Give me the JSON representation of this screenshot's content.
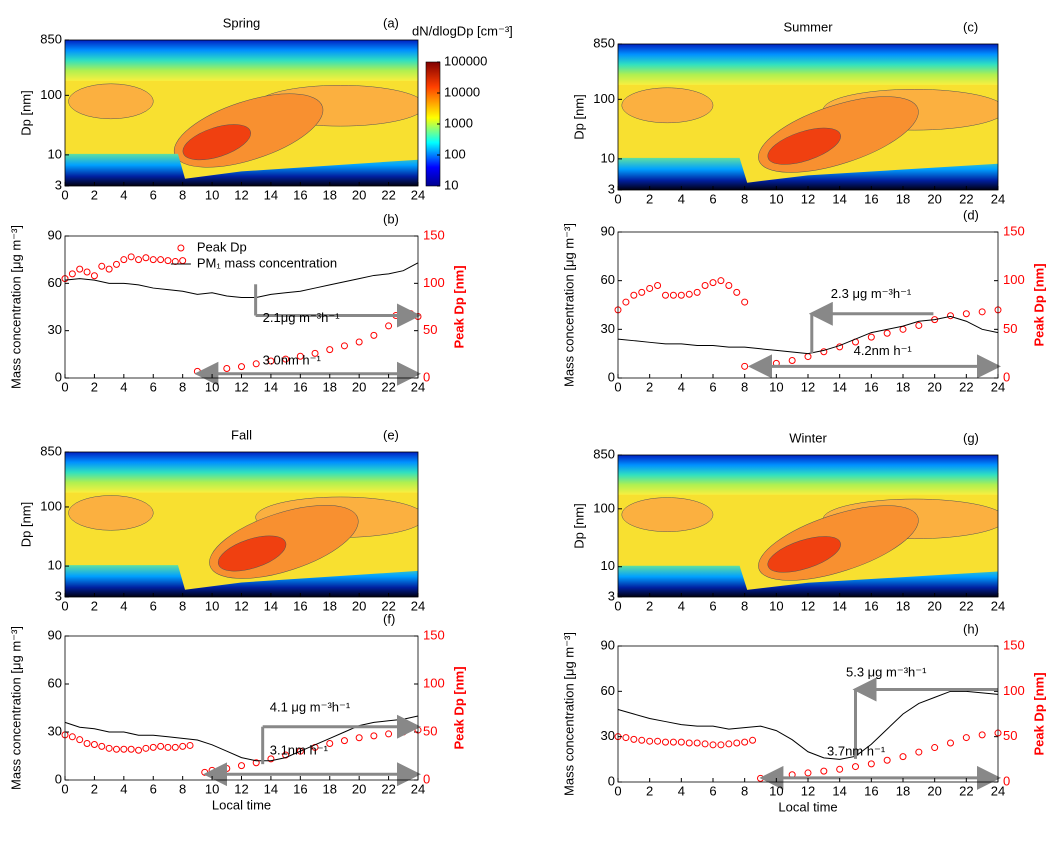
{
  "chart_data": [
    {
      "type": "contour",
      "title": "Spring",
      "label": "(a)",
      "ylabel": "Dp [nm]",
      "xlim": [
        0,
        24
      ],
      "xticks": [
        0,
        2,
        4,
        6,
        8,
        10,
        12,
        14,
        16,
        18,
        20,
        22,
        24
      ],
      "ylim": [
        3,
        850
      ],
      "yticks": [
        3,
        10,
        100,
        850
      ],
      "log_y": true,
      "clabel": "dN/dlogDp [cm⁻³]",
      "clim": [
        10,
        100000
      ],
      "cticks": [
        10,
        100,
        1000,
        10000,
        100000
      ]
    },
    {
      "type": "line",
      "label": "(b)",
      "ylabel": "Mass concentration [μg m⁻³]",
      "y2label": "Peak Dp [nm]",
      "xlim": [
        0,
        24
      ],
      "xticks": [
        0,
        2,
        4,
        6,
        8,
        10,
        12,
        14,
        16,
        18,
        20,
        22,
        24
      ],
      "ylim": [
        0,
        90
      ],
      "yticks": [
        0,
        30,
        60,
        90
      ],
      "y2lim": [
        0,
        150
      ],
      "y2ticks": [
        0,
        50,
        100,
        150
      ],
      "legend": "top-left",
      "series": [
        {
          "name": "Peak Dp",
          "color": "#ff0000",
          "marker": "circle",
          "axis": "y2",
          "x": [
            0,
            0.5,
            1,
            1.5,
            2,
            2.5,
            3,
            3.5,
            4,
            4.5,
            5,
            5.5,
            6,
            6.5,
            7,
            7.5,
            8,
            9,
            10,
            11,
            12,
            13,
            14,
            15,
            16,
            17,
            18,
            19,
            20,
            21,
            22,
            22.5,
            23,
            23.5,
            24
          ],
          "values": [
            105,
            110,
            115,
            112,
            108,
            118,
            115,
            120,
            125,
            128,
            125,
            127,
            125,
            125,
            124,
            123,
            124,
            7,
            8,
            10,
            12,
            15,
            18,
            20,
            23,
            26,
            30,
            34,
            38,
            45,
            55,
            66,
            70,
            68,
            65
          ]
        },
        {
          "name": "PM₁ mass concentration",
          "color": "#000000",
          "x": [
            0,
            1,
            2,
            3,
            4,
            5,
            6,
            7,
            8,
            9,
            10,
            11,
            12,
            13,
            14,
            15,
            16,
            17,
            18,
            19,
            20,
            21,
            22,
            23,
            24
          ],
          "values": [
            62,
            63,
            62,
            60,
            60,
            59,
            57,
            56,
            55,
            53,
            54,
            52,
            51,
            51,
            53,
            54,
            55,
            57,
            59,
            61,
            63,
            65,
            66,
            68,
            73
          ]
        }
      ],
      "annotations": [
        "2.1μg m⁻³h⁻¹",
        "3.0nm h⁻¹"
      ]
    },
    {
      "type": "contour",
      "title": "Summer",
      "label": "(c)",
      "ylabel": "Dp [nm]",
      "xlim": [
        0,
        24
      ],
      "xticks": [
        0,
        2,
        4,
        6,
        8,
        10,
        12,
        14,
        16,
        18,
        20,
        22,
        24
      ],
      "ylim": [
        3,
        850
      ],
      "yticks": [
        3,
        10,
        100,
        850
      ],
      "log_y": true
    },
    {
      "type": "line",
      "label": "(d)",
      "ylabel": "Mass concentration [μg m⁻³]",
      "y2label": "Peak Dp [nm]",
      "xlim": [
        0,
        24
      ],
      "xticks": [
        0,
        2,
        4,
        6,
        8,
        10,
        12,
        14,
        16,
        18,
        20,
        22,
        24
      ],
      "ylim": [
        0,
        90
      ],
      "yticks": [
        0,
        30,
        60,
        90
      ],
      "y2lim": [
        0,
        150
      ],
      "y2ticks": [
        0,
        50,
        100,
        150
      ],
      "series": [
        {
          "color": "#ff0000",
          "marker": "circle",
          "axis": "y2",
          "x": [
            0,
            0.5,
            1,
            1.5,
            2,
            2.5,
            3,
            3.5,
            4,
            4.5,
            5,
            5.5,
            6,
            6.5,
            7,
            7.5,
            8,
            8,
            9,
            10,
            11,
            12,
            13,
            14,
            15,
            16,
            17,
            18,
            19,
            20,
            21,
            22,
            23,
            24
          ],
          "values": [
            70,
            78,
            85,
            88,
            92,
            95,
            85,
            85,
            85,
            86,
            88,
            95,
            98,
            100,
            95,
            88,
            78,
            12,
            12,
            15,
            18,
            22,
            27,
            32,
            37,
            42,
            46,
            50,
            54,
            60,
            64,
            66,
            68,
            70
          ]
        },
        {
          "color": "#000000",
          "x": [
            0,
            1,
            2,
            3,
            4,
            5,
            6,
            7,
            8,
            9,
            10,
            11,
            12,
            13,
            14,
            15,
            16,
            17,
            18,
            19,
            20,
            21,
            22,
            23,
            24
          ],
          "values": [
            24,
            23,
            22,
            21,
            21,
            20,
            20,
            19,
            19,
            18,
            17,
            16,
            15,
            17,
            20,
            24,
            28,
            30,
            32,
            35,
            36,
            38,
            35,
            30,
            28
          ]
        }
      ],
      "annotations": [
        "2.3 μg m⁻³h⁻¹",
        "4.2nm h⁻¹"
      ]
    },
    {
      "type": "contour",
      "title": "Fall",
      "label": "(e)",
      "ylabel": "Dp [nm]",
      "xlim": [
        0,
        24
      ],
      "xticks": [
        0,
        2,
        4,
        6,
        8,
        10,
        12,
        14,
        16,
        18,
        20,
        22,
        24
      ],
      "ylim": [
        3,
        850
      ],
      "yticks": [
        3,
        10,
        100,
        850
      ],
      "log_y": true
    },
    {
      "type": "line",
      "label": "(f)",
      "xlabel": "Local time",
      "ylabel": "Mass concentration [μg m⁻³]",
      "y2label": "Peak Dp [nm]",
      "xlim": [
        0,
        24
      ],
      "xticks": [
        0,
        2,
        4,
        6,
        8,
        10,
        12,
        14,
        16,
        18,
        20,
        22,
        24
      ],
      "ylim": [
        0,
        90
      ],
      "yticks": [
        0,
        30,
        60,
        90
      ],
      "y2lim": [
        0,
        150
      ],
      "y2ticks": [
        0,
        50,
        100,
        150
      ],
      "series": [
        {
          "color": "#ff0000",
          "marker": "circle",
          "axis": "y2",
          "x": [
            0,
            0.5,
            1,
            1.5,
            2,
            2.5,
            3,
            3.5,
            4,
            4.5,
            5,
            5.5,
            6,
            6.5,
            7,
            7.5,
            8,
            8.5,
            9.5,
            10,
            11,
            12,
            13,
            14,
            15,
            16,
            17,
            18,
            19,
            20,
            21,
            22,
            23,
            24
          ],
          "values": [
            47,
            45,
            42,
            38,
            37,
            35,
            33,
            32,
            32,
            32,
            31,
            33,
            34,
            35,
            34,
            34,
            35,
            36,
            8,
            10,
            12,
            15,
            18,
            22,
            26,
            30,
            34,
            38,
            41,
            44,
            46,
            48,
            50,
            52
          ]
        },
        {
          "color": "#000000",
          "x": [
            0,
            1,
            2,
            3,
            4,
            5,
            6,
            7,
            8,
            9,
            10,
            11,
            12,
            13,
            14,
            15,
            16,
            17,
            18,
            19,
            20,
            21,
            22,
            23,
            24
          ],
          "values": [
            36,
            33,
            32,
            30,
            30,
            28,
            28,
            27,
            26,
            25,
            22,
            18,
            14,
            12,
            12,
            14,
            18,
            22,
            26,
            30,
            34,
            36,
            37,
            38,
            40
          ]
        }
      ],
      "annotations": [
        "4.1 μg m⁻³h⁻¹",
        "3.1nm h⁻¹"
      ]
    },
    {
      "type": "contour",
      "title": "Winter",
      "label": "(g)",
      "ylabel": "Dp [nm]",
      "xlim": [
        0,
        24
      ],
      "xticks": [
        0,
        2,
        4,
        6,
        8,
        10,
        12,
        14,
        16,
        18,
        20,
        22,
        24
      ],
      "ylim": [
        3,
        850
      ],
      "yticks": [
        3,
        10,
        100,
        850
      ],
      "log_y": true
    },
    {
      "type": "line",
      "label": "(h)",
      "xlabel": "Local time",
      "ylabel": "Mass concentration [μg m⁻³]",
      "y2label": "Peak Dp [nm]",
      "xlim": [
        0,
        24
      ],
      "xticks": [
        0,
        2,
        4,
        6,
        8,
        10,
        12,
        14,
        16,
        18,
        20,
        22,
        24
      ],
      "ylim": [
        0,
        90
      ],
      "yticks": [
        0,
        30,
        60,
        90
      ],
      "y2lim": [
        0,
        150
      ],
      "y2ticks": [
        0,
        50,
        100,
        150
      ],
      "series": [
        {
          "color": "#ff0000",
          "marker": "circle",
          "axis": "y2",
          "x": [
            0,
            0.5,
            1,
            1.5,
            2,
            2.5,
            3,
            3.5,
            4,
            4.5,
            5,
            5.5,
            6,
            6.5,
            7,
            7.5,
            8,
            8.5,
            9,
            10,
            11,
            12,
            13,
            14,
            15,
            16,
            17,
            18,
            19,
            20,
            21,
            22,
            23,
            24
          ],
          "values": [
            50,
            49,
            47,
            46,
            45,
            45,
            44,
            44,
            44,
            43,
            43,
            42,
            41,
            41,
            42,
            43,
            44,
            46,
            4,
            6,
            8,
            10,
            12,
            14,
            17,
            20,
            24,
            28,
            33,
            38,
            43,
            49,
            52,
            54
          ]
        },
        {
          "color": "#000000",
          "x": [
            0,
            1,
            2,
            3,
            4,
            5,
            6,
            7,
            8,
            9,
            10,
            11,
            12,
            13,
            14,
            15,
            16,
            17,
            18,
            19,
            20,
            21,
            22,
            23,
            24
          ],
          "values": [
            48,
            45,
            42,
            40,
            38,
            37,
            37,
            35,
            36,
            37,
            34,
            28,
            20,
            16,
            15,
            17,
            25,
            35,
            45,
            52,
            56,
            60,
            60,
            59,
            58
          ]
        }
      ],
      "annotations": [
        "5.3 μg m⁻³h⁻¹",
        "3.7nm h⁻¹"
      ]
    }
  ]
}
